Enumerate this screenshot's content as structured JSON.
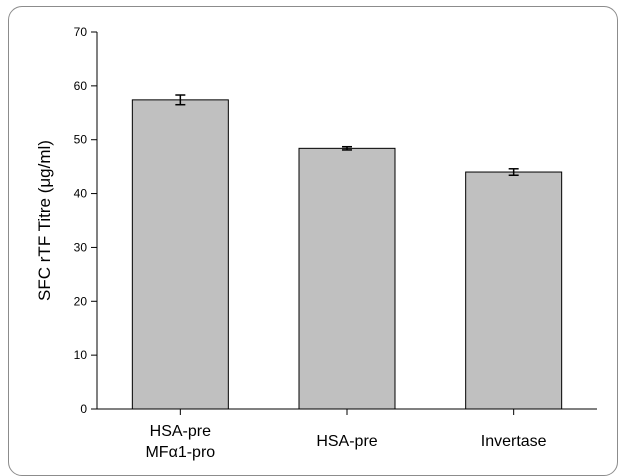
{
  "chart_data": {
    "type": "bar",
    "title": "",
    "xlabel": "",
    "ylabel": "SFC rTF Titre (μg/ml)",
    "categories": [
      [
        "HSA-pre",
        "MFα1-pro"
      ],
      [
        "HSA-pre"
      ],
      [
        "Invertase"
      ]
    ],
    "values": [
      57.4,
      48.4,
      44.0
    ],
    "errors": [
      0.9,
      0.3,
      0.6
    ],
    "ylim": [
      0,
      70
    ],
    "yticks": [
      0,
      10,
      20,
      30,
      40,
      50,
      60,
      70
    ],
    "grid": false,
    "legend": "none",
    "bar_color": "#c0c0c0"
  }
}
